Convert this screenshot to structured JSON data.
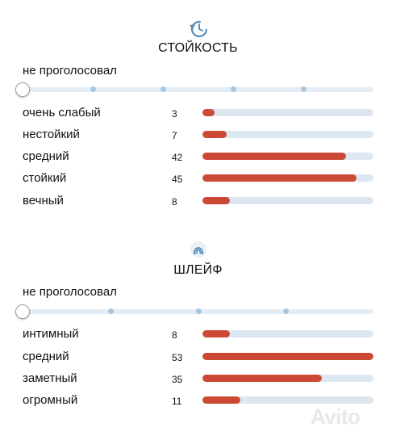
{
  "longevity": {
    "title": "СТОЙКОСТЬ",
    "icon": "clock-refresh-icon",
    "not_voted_label": "не проголосовал",
    "slider_stops": 5,
    "slider_value": 0,
    "max_count": 100,
    "items": [
      {
        "label": "очень слабый",
        "count": "3"
      },
      {
        "label": "нестойкий",
        "count": "7"
      },
      {
        "label": "средний",
        "count": "42"
      },
      {
        "label": "стойкий",
        "count": "45"
      },
      {
        "label": "вечный",
        "count": "8"
      }
    ]
  },
  "sillage": {
    "title": "ШЛЕЙФ",
    "icon": "sillage-icon",
    "not_voted_label": "не проголосовал",
    "slider_stops": 4,
    "slider_value": 0,
    "max_count": 100,
    "items": [
      {
        "label": "интимный",
        "count": "8"
      },
      {
        "label": "средний",
        "count": "53"
      },
      {
        "label": "заметный",
        "count": "35"
      },
      {
        "label": "огромный",
        "count": "11"
      }
    ]
  },
  "colors": {
    "accent": "#cc4a35",
    "track": "#dce7f2",
    "icon": "#5b8fb9"
  },
  "watermark": "Avito"
}
